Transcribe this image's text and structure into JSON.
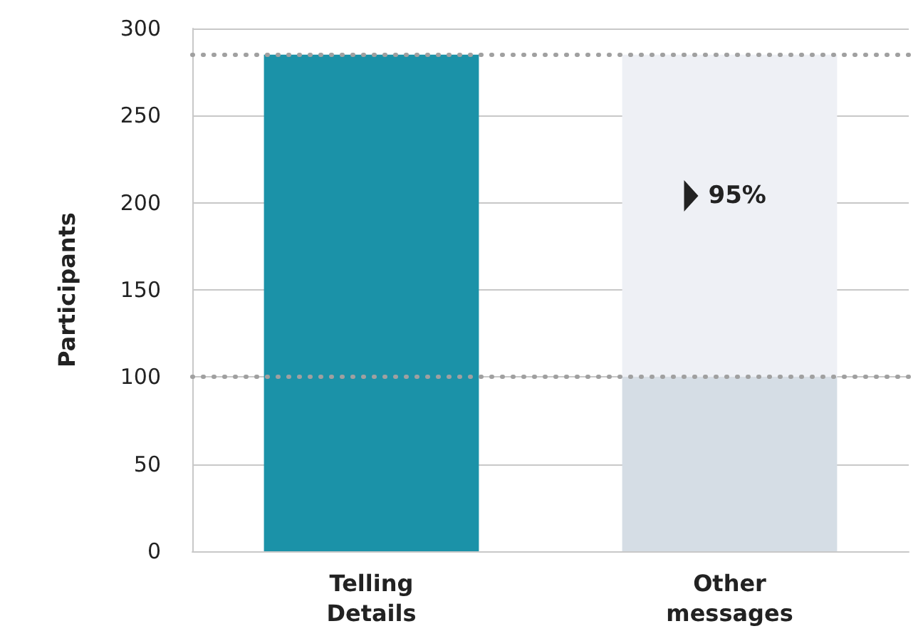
{
  "chart_data": {
    "type": "bar",
    "stacked": true,
    "ylabel": "Participants",
    "categories": [
      "Telling\nDetails",
      "Other\nmessages"
    ],
    "series": [
      {
        "colors": [
          "#1b92a8",
          "#d5dde5"
        ],
        "values": [
          285,
          100
        ]
      },
      {
        "colors": [
          "#1b92a8",
          "#eef0f5"
        ],
        "values": [
          null,
          185
        ]
      }
    ],
    "ylim": [
      0,
      300
    ],
    "yticks": [
      0,
      50,
      100,
      150,
      200,
      250,
      300
    ],
    "grid": "y",
    "ref_lines": [
      {
        "axis": "y",
        "value": 285,
        "color": "#a0a0a0",
        "line_style": "dotted"
      },
      {
        "axis": "y",
        "value": 100,
        "color": "#a0a0a0",
        "line_style": "dotted"
      }
    ],
    "annotations": [
      "95%"
    ]
  }
}
